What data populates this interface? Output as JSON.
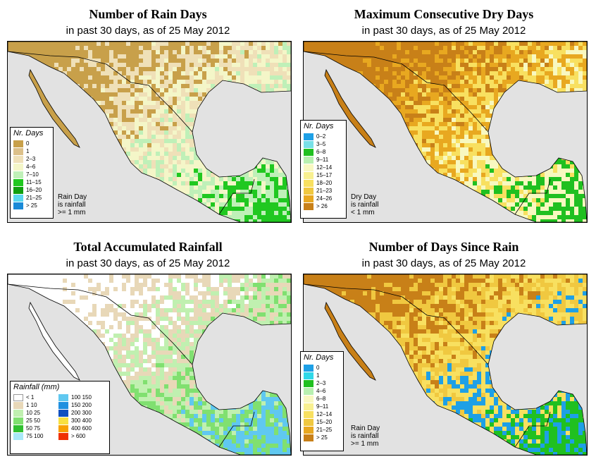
{
  "panels": [
    {
      "id": "rain-days",
      "title": "Number of Rain Days",
      "subtitle": "in past 30 days, as of  25 May 2012",
      "legend_title": "Nr. Days",
      "legend": [
        {
          "label": "0",
          "color": "#c8a04a"
        },
        {
          "label": "1",
          "color": "#dcc08a"
        },
        {
          "label": "2–3",
          "color": "#efe0b8"
        },
        {
          "label": "4–6",
          "color": "#f4f6c8"
        },
        {
          "label": "7–10",
          "color": "#bff0b8"
        },
        {
          "label": "11–15",
          "color": "#20c820"
        },
        {
          "label": "16–20",
          "color": "#10a010"
        },
        {
          "label": "21–25",
          "color": "#5ad8f0"
        },
        {
          "label": "> 25",
          "color": "#1a8ad8"
        }
      ],
      "note": "Rain Day\nis rainfall\n>= 1 mm",
      "map_colors": {
        "dry": "#c8a04a",
        "mid": "#efe0b8",
        "base": "#f4f6c8",
        "wet": "#bff0b8",
        "wettest": "#20c820"
      }
    },
    {
      "id": "dry-days",
      "title": "Maximum Consecutive Dry Days",
      "subtitle": "in past 30 days, as of  25 May 2012",
      "legend_title": "Nr. Days",
      "legend": [
        {
          "label": "0–2",
          "color": "#1ea0e6"
        },
        {
          "label": "3–5",
          "color": "#78e0e8"
        },
        {
          "label": "6–8",
          "color": "#20c020"
        },
        {
          "label": "9–11",
          "color": "#b8f0b0"
        },
        {
          "label": "12–14",
          "color": "#f8f8c0"
        },
        {
          "label": "15–17",
          "color": "#f8f090"
        },
        {
          "label": "18–20",
          "color": "#f8e060"
        },
        {
          "label": "21–23",
          "color": "#f0c840"
        },
        {
          "label": "24–26",
          "color": "#e8a820"
        },
        {
          "label": "> 26",
          "color": "#c88018"
        }
      ],
      "note": "Dry Day\nis rainfall\n< 1 mm",
      "map_colors": {
        "dry": "#c88018",
        "mid": "#e8a820",
        "base": "#f8e060",
        "wet": "#f8f8c0",
        "wettest": "#20c020"
      }
    },
    {
      "id": "total-rainfall",
      "title": "Total Accumulated Rainfall",
      "subtitle": "in past 30 days, as of  25 May 2012",
      "legend_title": "Rainfall (mm)",
      "legend": [
        {
          "label": "< 1",
          "color": "#ffffff"
        },
        {
          "label": "1    10",
          "color": "#e8d8b8"
        },
        {
          "label": "10   25",
          "color": "#c0f0b0"
        },
        {
          "label": "25   50",
          "color": "#80e070"
        },
        {
          "label": "50   75",
          "color": "#30c030"
        },
        {
          "label": "75  100",
          "color": "#a8e8f8"
        },
        {
          "label": "100  150",
          "color": "#60c8f0"
        },
        {
          "label": "150  200",
          "color": "#2090e0"
        },
        {
          "label": "200  300",
          "color": "#1050c0"
        },
        {
          "label": "300  400",
          "color": "#f8e040"
        },
        {
          "label": "400  600",
          "color": "#f8a000"
        },
        {
          "label": "> 600",
          "color": "#f03000"
        }
      ],
      "note": "",
      "map_colors": {
        "dry": "#ffffff",
        "mid": "#e8d8b8",
        "base": "#c0f0b0",
        "wet": "#80e070",
        "wettest": "#60c8f0"
      }
    },
    {
      "id": "days-since-rain",
      "title": "Number of Days Since Rain",
      "subtitle": "in past 30 days, as of  25 May 2012",
      "legend_title": "Nr. Days",
      "legend": [
        {
          "label": "0",
          "color": "#1ea0e6"
        },
        {
          "label": "1",
          "color": "#30d8e8"
        },
        {
          "label": "2–3",
          "color": "#20c020"
        },
        {
          "label": "4–6",
          "color": "#b8f0b0"
        },
        {
          "label": "6–8",
          "color": "#f8f8c0"
        },
        {
          "label": "9–11",
          "color": "#f8f090"
        },
        {
          "label": "12–14",
          "color": "#f8e060"
        },
        {
          "label": "15–20",
          "color": "#f0c840"
        },
        {
          "label": "21–25",
          "color": "#e8a820"
        },
        {
          "label": "> 25",
          "color": "#c88018"
        }
      ],
      "note": "Rain Day\nis rainfall\n>= 1 mm",
      "map_colors": {
        "dry": "#c88018",
        "mid": "#f0c840",
        "base": "#f8e060",
        "wet": "#1ea0e6",
        "wettest": "#20c020"
      }
    }
  ]
}
